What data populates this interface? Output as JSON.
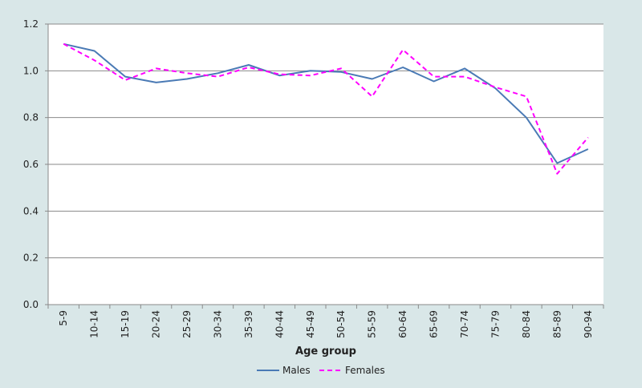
{
  "chart_data": {
    "type": "line",
    "title": "",
    "xlabel": "Age group",
    "ylabel": "",
    "ylim": [
      0,
      1.2
    ],
    "yticks": [
      0.0,
      0.2,
      0.4,
      0.6,
      0.8,
      1.0,
      1.2
    ],
    "ytick_labels": [
      "0.0",
      "0.2",
      "0.4",
      "0.6",
      "0.8",
      "1.0",
      "1.2"
    ],
    "grid": "horizontal",
    "legend_position": "bottom",
    "categories": [
      "5-9",
      "10-14",
      "15-19",
      "20-24",
      "25-29",
      "30-34",
      "35-39",
      "40-44",
      "45-49",
      "50-54",
      "55-59",
      "60-64",
      "65-69",
      "70-74",
      "75-79",
      "80-84",
      "85-89",
      "90-94"
    ],
    "series": [
      {
        "name": "Males",
        "color": "#4a7ab5",
        "style": "solid",
        "values": [
          1.115,
          1.085,
          0.975,
          0.95,
          0.965,
          0.99,
          1.025,
          0.98,
          1.0,
          0.995,
          0.965,
          1.015,
          0.955,
          1.01,
          0.925,
          0.8,
          0.605,
          0.665
        ]
      },
      {
        "name": "Females",
        "color": "#ff00ff",
        "style": "dashed",
        "values": [
          1.115,
          1.045,
          0.96,
          1.01,
          0.99,
          0.975,
          1.015,
          0.985,
          0.98,
          1.01,
          0.89,
          1.09,
          0.975,
          0.975,
          0.93,
          0.89,
          0.56,
          0.715
        ]
      }
    ]
  }
}
